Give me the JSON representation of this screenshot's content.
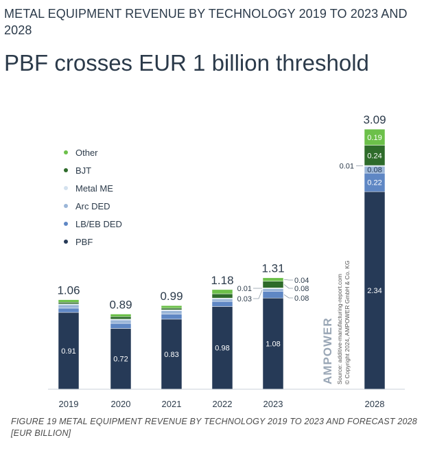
{
  "supertitle": "METAL EQUIPMENT REVENUE BY TECHNOLOGY 2019 TO 2023 AND 2028",
  "headline": "PBF crosses EUR 1 billion threshold",
  "caption": "FIGURE 19 METAL EQUIPMENT REVENUE BY TECHNOLOGY 2019 TO 2023 AND FORECAST 2028 [EUR BILLION]",
  "watermark": {
    "brand": "AMPOWER",
    "source": "Source: additive-manufacturing-report.com",
    "copyright": "© Copyright 2024, AMPOWER GmbH & Co. KG"
  },
  "colors": {
    "PBF": "#263a57",
    "LB/EB DED": "#5f87c4",
    "Arc DED": "#9bb6d8",
    "Metal ME": "#d3e1ee",
    "BJT": "#2e6b2a",
    "Other": "#6cc04a"
  },
  "chart_data": {
    "type": "bar",
    "stacked": true,
    "categories": [
      "2019",
      "2020",
      "2021",
      "2022",
      "2023",
      "2028"
    ],
    "totals": [
      "1.06",
      "0.89",
      "0.99",
      "1.18",
      "1.31",
      "3.09"
    ],
    "legend_placement": "left",
    "series": [
      {
        "name": "PBF",
        "values": [
          0.91,
          0.72,
          0.83,
          0.98,
          1.08,
          2.34
        ],
        "labels": [
          "0.91",
          "0.72",
          "0.83",
          "0.98",
          "1.08",
          "2.34"
        ]
      },
      {
        "name": "LB/EB DED",
        "values": [
          0.05,
          0.06,
          0.06,
          0.06,
          0.08,
          0.22
        ],
        "labels": [
          "",
          "",
          "",
          "",
          "0.08",
          "0.22"
        ]
      },
      {
        "name": "Arc DED",
        "values": [
          0.04,
          0.04,
          0.04,
          0.03,
          0.03,
          0.08
        ],
        "labels": [
          "",
          "",
          "",
          "",
          "0.03",
          "0.08"
        ]
      },
      {
        "name": "Metal ME",
        "values": [
          0.01,
          0.01,
          0.01,
          0.01,
          0.01,
          0.01
        ],
        "labels": [
          "",
          "",
          "",
          "",
          "0.01",
          "0.01"
        ]
      },
      {
        "name": "BJT",
        "values": [
          0.02,
          0.03,
          0.02,
          0.05,
          0.08,
          0.24
        ],
        "labels": [
          "",
          "",
          "",
          "",
          "0.08",
          "0.24"
        ]
      },
      {
        "name": "Other",
        "values": [
          0.03,
          0.03,
          0.03,
          0.05,
          0.04,
          0.19
        ],
        "labels": [
          "",
          "",
          "",
          "",
          "0.04",
          "0.19"
        ]
      }
    ],
    "legend": [
      "Other",
      "BJT",
      "Metal ME",
      "Arc DED",
      "LB/EB DED",
      "PBF"
    ]
  }
}
